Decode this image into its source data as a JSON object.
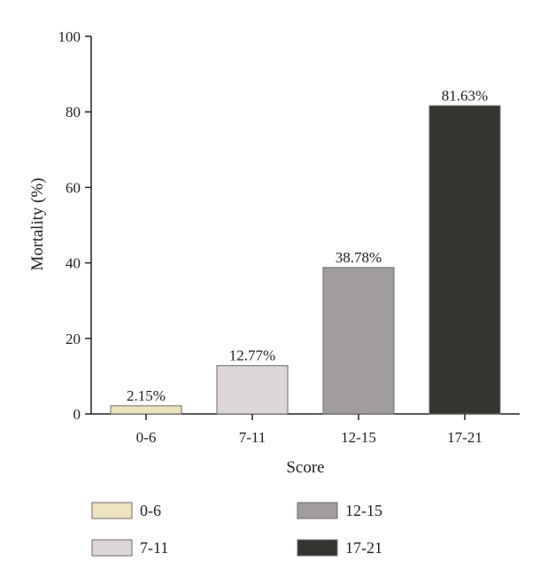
{
  "chart_data": {
    "type": "bar",
    "categories": [
      "0-6",
      "7-11",
      "12-15",
      "17-21"
    ],
    "values": [
      2.15,
      12.77,
      38.78,
      81.63
    ],
    "data_labels": [
      "2.15%",
      "12.77%",
      "38.78%",
      "81.63%"
    ],
    "colors": [
      "#ede3bd",
      "#dcd6d6",
      "#a19c9d",
      "#363431"
    ],
    "xlabel": "Score",
    "ylabel": "Mortality (%)",
    "ylim": [
      0,
      100
    ],
    "yticks": [
      0,
      20,
      40,
      60,
      80,
      100
    ],
    "grid": false,
    "legend": {
      "placement": "bottom",
      "entries": [
        "0-6",
        "12-15",
        "7-11",
        "17-21"
      ]
    }
  }
}
